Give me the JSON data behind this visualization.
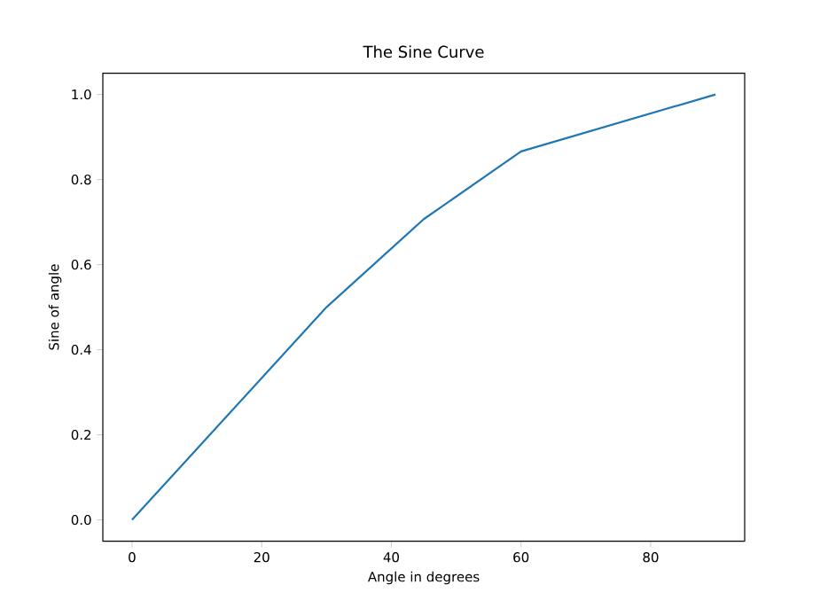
{
  "chart_data": {
    "type": "line",
    "title": "The Sine Curve",
    "xlabel": "Angle in degrees",
    "ylabel": "Sine of angle",
    "x": [
      0,
      30,
      45,
      60,
      90
    ],
    "series": [
      {
        "color": "#1f77b4",
        "values": [
          0,
          0.5,
          0.707,
          0.866,
          1
        ]
      }
    ],
    "xlim": [
      -4.5,
      94.5
    ],
    "ylim": [
      -0.05,
      1.05
    ],
    "xticks": [
      0,
      20,
      40,
      60,
      80
    ],
    "yticks": [
      {
        "value": 0,
        "label": "0.0"
      },
      {
        "value": 0.2,
        "label": "0.2"
      },
      {
        "value": 0.4,
        "label": "0.4"
      },
      {
        "value": 0.6,
        "label": "0.6"
      },
      {
        "value": 0.8,
        "label": "0.8"
      },
      {
        "value": 1,
        "label": "1.0"
      }
    ],
    "grid": false,
    "marker": "none",
    "line_style": "solid"
  }
}
